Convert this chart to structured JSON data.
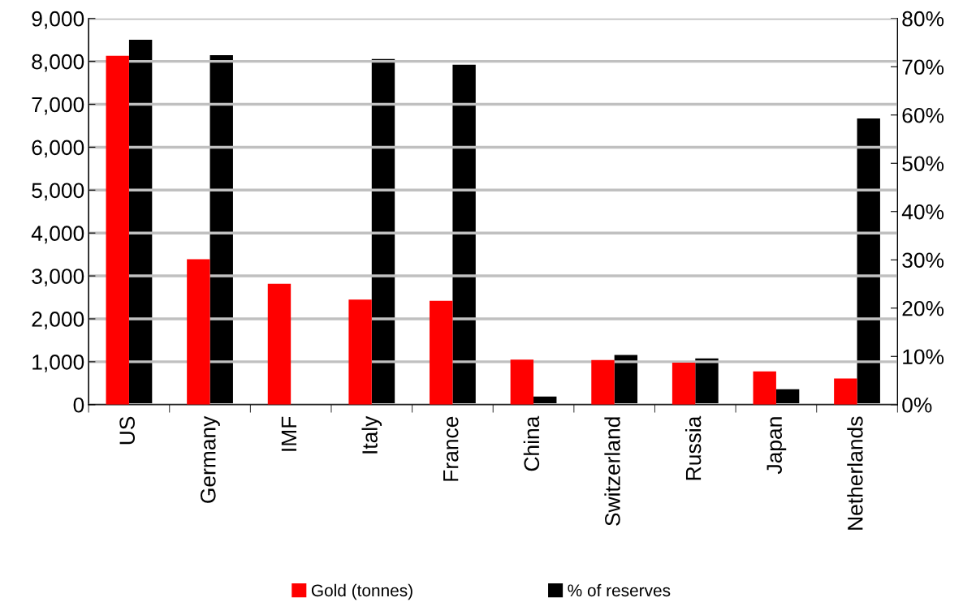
{
  "chart_data": {
    "type": "bar",
    "categories": [
      "US",
      "Germany",
      "IMF",
      "Italy",
      "France",
      "China",
      "Switzerland",
      "Russia",
      "Japan",
      "Netherlands"
    ],
    "series": [
      {
        "name": "Gold (tonnes)",
        "color": "#ff0000",
        "values": [
          8130,
          3390,
          2815,
          2450,
          2420,
          1050,
          1040,
          980,
          775,
          610
        ]
      },
      {
        "name": "% of reserves",
        "color": "#000000",
        "axis": "y2",
        "values": [
          75.6,
          72.4,
          null,
          71.6,
          70.4,
          1.7,
          10.3,
          9.6,
          3.2,
          59.3
        ]
      }
    ],
    "ylim": [
      0,
      9000
    ],
    "yticks": [
      {
        "value": 0,
        "label": "0"
      },
      {
        "value": 1000,
        "label": "1,000"
      },
      {
        "value": 2000,
        "label": "2,000"
      },
      {
        "value": 3000,
        "label": "3,000"
      },
      {
        "value": 4000,
        "label": "4,000"
      },
      {
        "value": 5000,
        "label": "5,000"
      },
      {
        "value": 6000,
        "label": "6,000"
      },
      {
        "value": 7000,
        "label": "7,000"
      },
      {
        "value": 8000,
        "label": "8,000"
      },
      {
        "value": 9000,
        "label": "9,000"
      }
    ],
    "y2lim": [
      0,
      80
    ],
    "y2ticks": [
      {
        "value": 0,
        "label": "0%"
      },
      {
        "value": 10,
        "label": "10%"
      },
      {
        "value": 20,
        "label": "20%"
      },
      {
        "value": 30,
        "label": "30%"
      },
      {
        "value": 40,
        "label": "40%"
      },
      {
        "value": 50,
        "label": "50%"
      },
      {
        "value": 60,
        "label": "60%"
      },
      {
        "value": 70,
        "label": "70%"
      },
      {
        "value": 80,
        "label": "80%"
      }
    ],
    "grid": "y",
    "legend": "bottom"
  }
}
